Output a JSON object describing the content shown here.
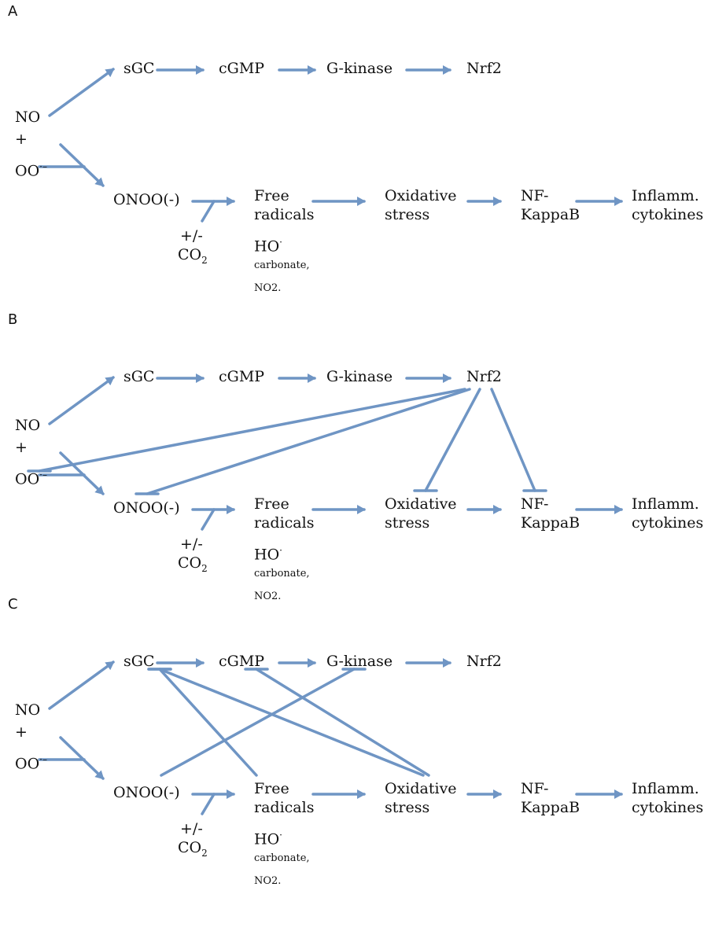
{
  "panels": [
    {
      "label": "A"
    },
    {
      "label": "B"
    },
    {
      "label": "C"
    }
  ],
  "nodes": {
    "no": "NO",
    "plus": "+",
    "oo": "OO",
    "oo_sup": "·–",
    "sgc": "sGC",
    "cgmp": "cGMP",
    "gkinase": "G-kinase",
    "nrf2": "Nrf2",
    "onoo": "ONOO(-)",
    "pm": "+/-",
    "co": "CO",
    "co_sub": "2",
    "free1": "Free",
    "free2": "radicals",
    "ho": "HO",
    "ho_sup": "·",
    "carbonate": "carbonate,",
    "no2": "NO2.",
    "ox1": "Oxidative",
    "ox2": "stress",
    "nf1": "NF-",
    "nf2": "KappaB",
    "inf1": "Inflamm.",
    "inf2": "cytokines"
  },
  "colors": {
    "line": "#6f95c4"
  }
}
